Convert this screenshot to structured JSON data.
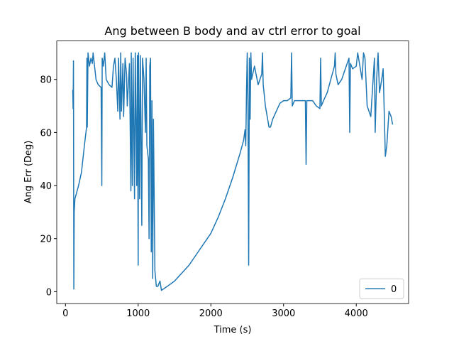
{
  "chart_data": {
    "type": "line",
    "title": "Ang between B body and av ctrl error to goal",
    "x_label": "Time (s)",
    "y_label": "Ang Err (Deg)",
    "x": [
      100,
      105,
      110,
      115,
      120,
      130,
      150,
      180,
      220,
      260,
      290,
      295,
      300,
      310,
      330,
      350,
      370,
      380,
      400,
      420,
      450,
      490,
      500,
      505,
      520,
      540,
      560,
      600,
      640,
      660,
      680,
      700,
      720,
      730,
      750,
      760,
      770,
      790,
      800,
      820,
      840,
      850,
      880,
      900,
      905,
      920,
      930,
      950,
      960,
      980,
      990,
      1000,
      1005,
      1020,
      1030,
      1050,
      1060,
      1080,
      1100,
      1110,
      1120,
      1140,
      1150,
      1160,
      1170,
      1180,
      1190,
      1200,
      1210,
      1230,
      1250,
      1270,
      1300,
      1320,
      1400,
      1500,
      1600,
      1700,
      1800,
      1900,
      2000,
      2100,
      2200,
      2300,
      2400,
      2450,
      2470,
      2480,
      2490,
      2500,
      2510,
      2520,
      2530,
      2540,
      2550,
      2560,
      2600,
      2650,
      2700,
      2710,
      2720,
      2750,
      2800,
      2820,
      2850,
      2900,
      2950,
      3000,
      3050,
      3100,
      3110,
      3120,
      3150,
      3200,
      3250,
      3300,
      3310,
      3320,
      3350,
      3400,
      3450,
      3500,
      3510,
      3520,
      3550,
      3600,
      3650,
      3700,
      3710,
      3720,
      3750,
      3800,
      3850,
      3900,
      3910,
      3920,
      3950,
      4000,
      4020,
      4050,
      4080,
      4100,
      4120,
      4150,
      4200,
      4250,
      4260,
      4280,
      4300,
      4320,
      4350,
      4370,
      4400,
      4420,
      4450,
      4480,
      4500
    ],
    "series": [
      {
        "name": "0",
        "color": "#1f77b4",
        "values": [
          76,
          69,
          87,
          1,
          30,
          35,
          37,
          40,
          45,
          55,
          62,
          88,
          62,
          90,
          85,
          88,
          86,
          90,
          85,
          80,
          78,
          77,
          40,
          88,
          85,
          90,
          80,
          78,
          77,
          85,
          88,
          80,
          68,
          88,
          65,
          90,
          68,
          86,
          66,
          88,
          82,
          70,
          86,
          38,
          90,
          40,
          88,
          35,
          90,
          40,
          89,
          10,
          90,
          35,
          89,
          25,
          88,
          80,
          60,
          88,
          55,
          50,
          20,
          85,
          88,
          15,
          72,
          5,
          65,
          8,
          2,
          2,
          4,
          0.5,
          2,
          4,
          7,
          10,
          14,
          18,
          22,
          28,
          35,
          43,
          52,
          57,
          61,
          55,
          75,
          90,
          70,
          10,
          88,
          65,
          90,
          80,
          85,
          78,
          82,
          90,
          78,
          70,
          62,
          62,
          65,
          68,
          71,
          72,
          72,
          73,
          90,
          70,
          72,
          72,
          72,
          72,
          48,
          72,
          72,
          72,
          70,
          69,
          88,
          70,
          72,
          75,
          80,
          85,
          90,
          82,
          78,
          80,
          84,
          88,
          60,
          86,
          84,
          85,
          90,
          85,
          80,
          90,
          88,
          70,
          66,
          88,
          60,
          80,
          90,
          75,
          80,
          84,
          51,
          55,
          68,
          66,
          63
        ]
      }
    ],
    "xlim": [
      -120,
      4720
    ],
    "ylim": [
      -4.5,
      94.5
    ],
    "xticks": [
      0,
      1000,
      2000,
      3000,
      4000
    ],
    "yticks": [
      0,
      20,
      40,
      60,
      80
    ],
    "legend": "lower right"
  }
}
